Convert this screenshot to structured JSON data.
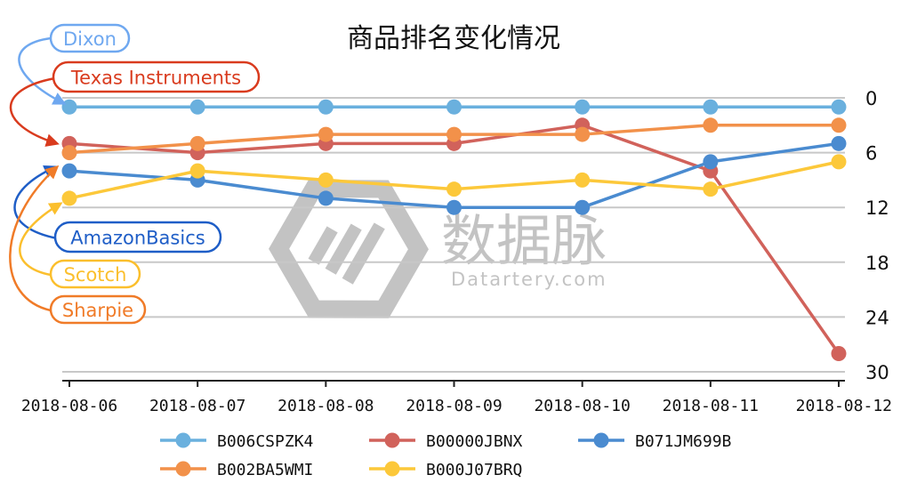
{
  "watermark": {
    "brand": "数据脉",
    "site": "Datartery.com"
  },
  "chart_data": {
    "type": "line",
    "title": "商品排名变化情况",
    "xlabel": "",
    "ylabel": "",
    "categories": [
      "2018-08-06",
      "2018-08-07",
      "2018-08-08",
      "2018-08-09",
      "2018-08-10",
      "2018-08-11",
      "2018-08-12"
    ],
    "y_axis": {
      "position": "right",
      "inverted": true,
      "ylim": [
        0,
        30
      ],
      "ticks": [
        0,
        6,
        12,
        18,
        24,
        30
      ]
    },
    "grid": "horizontal",
    "legend_position": "bottom",
    "series": [
      {
        "name": "B006CSPZK4",
        "color": "#6ab0de",
        "values": [
          1,
          1,
          1,
          1,
          1,
          1,
          1
        ]
      },
      {
        "name": "B00000JBNX",
        "color": "#d1625b",
        "values": [
          5,
          6,
          5,
          5,
          3,
          8,
          28
        ]
      },
      {
        "name": "B071JM699B",
        "color": "#4a8bd0",
        "values": [
          8,
          9,
          11,
          12,
          12,
          7,
          5
        ]
      },
      {
        "name": "B002BA5WMI",
        "color": "#f2914a",
        "values": [
          6,
          5,
          4,
          4,
          4,
          3,
          3
        ]
      },
      {
        "name": "B000J07BRQ",
        "color": "#fcc83a",
        "values": [
          11,
          8,
          9,
          10,
          9,
          10,
          7
        ]
      }
    ],
    "annotations": [
      {
        "text": "Dixon",
        "color": "#6fa8f0",
        "target_category": "2018-08-06",
        "target_value": 1
      },
      {
        "text": "Texas Instruments",
        "color": "#d93b1e",
        "target_category": "2018-08-06",
        "target_value": 5
      },
      {
        "text": "AmazonBasics",
        "color": "#1f5ec7",
        "target_category": "2018-08-06",
        "target_value": 7
      },
      {
        "text": "Scotch",
        "color": "#fbbf2d",
        "target_category": "2018-08-06",
        "target_value": 11
      },
      {
        "text": "Sharpie",
        "color": "#f07b28",
        "target_category": "2018-08-06",
        "target_value": 7
      }
    ]
  }
}
